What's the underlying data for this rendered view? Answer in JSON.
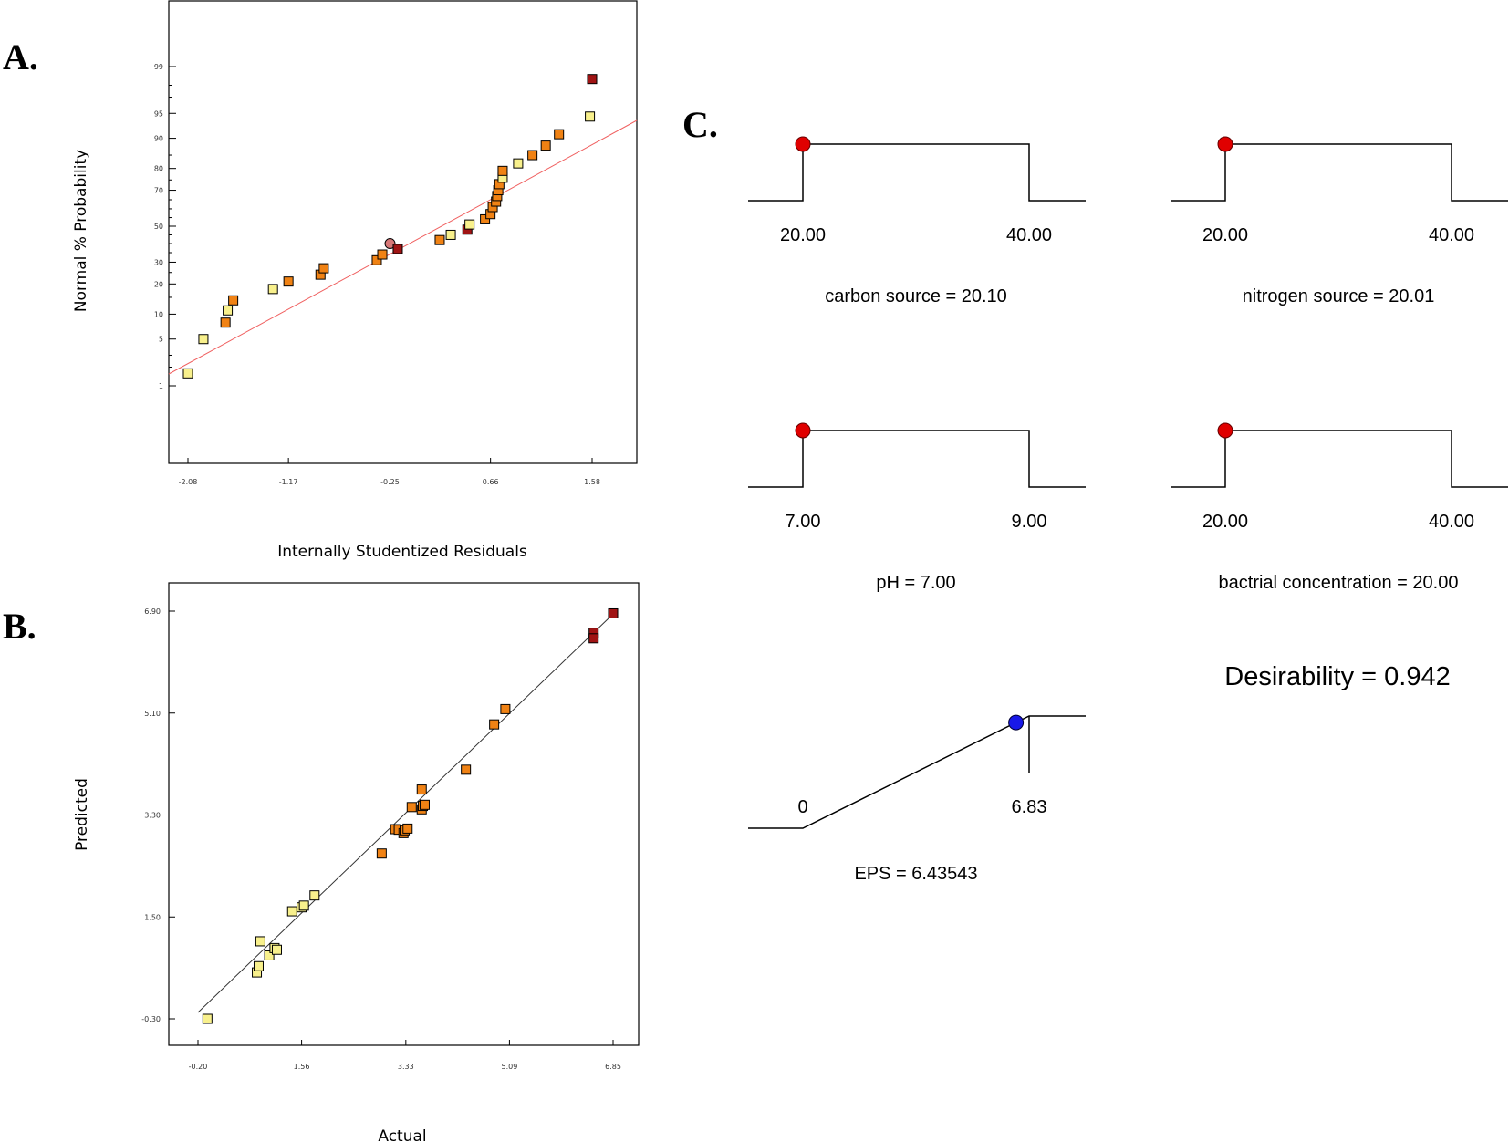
{
  "panel_labels": {
    "a": "A.",
    "b": "B.",
    "c": "C."
  },
  "colors": {
    "light": "#f8f08c",
    "orange": "#f08214",
    "dark": "#a01414",
    "pink": "#d87878",
    "line_a": "#f06060",
    "red_dot": "#e00000",
    "blue_dot": "#1818e8"
  },
  "chart_data": [
    {
      "type": "scatter",
      "xlabel": "Internally Studentized Residuals",
      "ylabel": "Normal % Probability",
      "xticks": [
        "-2.08",
        "-1.17",
        "-0.25",
        "0.66",
        "1.58"
      ],
      "xlim": [
        -2.3,
        1.8
      ],
      "yscale": "normal-probability",
      "yticks": [
        1,
        5,
        10,
        20,
        30,
        50,
        70,
        80,
        90,
        95,
        99
      ],
      "ylim": [
        0.1,
        99.9
      ],
      "fit_line": {
        "x": [
          -2.3,
          1.8
        ],
        "y": [
          2.5,
          94.5
        ]
      },
      "points": [
        {
          "x": -2.08,
          "y": 1.6,
          "c": "light"
        },
        {
          "x": -1.94,
          "y": 5,
          "c": "light"
        },
        {
          "x": -1.74,
          "y": 8,
          "c": "orange"
        },
        {
          "x": -1.72,
          "y": 11,
          "c": "light"
        },
        {
          "x": -1.67,
          "y": 14,
          "c": "orange"
        },
        {
          "x": -1.31,
          "y": 18,
          "c": "light"
        },
        {
          "x": -1.17,
          "y": 21,
          "c": "orange"
        },
        {
          "x": -0.88,
          "y": 24,
          "c": "orange"
        },
        {
          "x": -0.85,
          "y": 27,
          "c": "orange"
        },
        {
          "x": -0.37,
          "y": 31,
          "c": "orange"
        },
        {
          "x": -0.32,
          "y": 34,
          "c": "orange"
        },
        {
          "x": -0.25,
          "y": 40,
          "c": "pink"
        },
        {
          "x": -0.18,
          "y": 37,
          "c": "dark"
        },
        {
          "x": 0.2,
          "y": 42,
          "c": "orange"
        },
        {
          "x": 0.3,
          "y": 45,
          "c": "light"
        },
        {
          "x": 0.45,
          "y": 48,
          "c": "dark"
        },
        {
          "x": 0.47,
          "y": 51,
          "c": "light"
        },
        {
          "x": 0.61,
          "y": 54,
          "c": "orange"
        },
        {
          "x": 0.66,
          "y": 57,
          "c": "orange"
        },
        {
          "x": 0.68,
          "y": 61,
          "c": "orange"
        },
        {
          "x": 0.71,
          "y": 64,
          "c": "orange"
        },
        {
          "x": 0.72,
          "y": 67,
          "c": "orange"
        },
        {
          "x": 0.73,
          "y": 70,
          "c": "orange"
        },
        {
          "x": 0.74,
          "y": 73,
          "c": "orange"
        },
        {
          "x": 0.77,
          "y": 76,
          "c": "light"
        },
        {
          "x": 0.77,
          "y": 79,
          "c": "orange"
        },
        {
          "x": 0.91,
          "y": 82,
          "c": "light"
        },
        {
          "x": 1.04,
          "y": 85,
          "c": "orange"
        },
        {
          "x": 1.16,
          "y": 88,
          "c": "orange"
        },
        {
          "x": 1.28,
          "y": 91,
          "c": "orange"
        },
        {
          "x": 1.56,
          "y": 94.5,
          "c": "light"
        },
        {
          "x": 1.58,
          "y": 98.4,
          "c": "dark"
        }
      ]
    },
    {
      "type": "scatter",
      "xlabel": "Actual",
      "ylabel": "Predicted",
      "xticks": [
        "-0.20",
        "1.56",
        "3.33",
        "5.09",
        "6.85"
      ],
      "yticks": [
        "-0.30",
        "1.50",
        "3.30",
        "5.10",
        "6.90"
      ],
      "xlim": [
        -0.2,
        6.85
      ],
      "ylim": [
        -0.75,
        7.4
      ],
      "fit_line": {
        "x": [
          -0.2,
          6.85
        ],
        "y": [
          -0.2,
          6.85
        ]
      },
      "points": [
        {
          "x": -0.04,
          "y": -0.3,
          "c": "light"
        },
        {
          "x": 0.8,
          "y": 0.52,
          "c": "light"
        },
        {
          "x": 0.83,
          "y": 0.63,
          "c": "light"
        },
        {
          "x": 0.86,
          "y": 1.07,
          "c": "light"
        },
        {
          "x": 1.01,
          "y": 0.82,
          "c": "light"
        },
        {
          "x": 1.1,
          "y": 0.95,
          "c": "light"
        },
        {
          "x": 1.14,
          "y": 0.92,
          "c": "light"
        },
        {
          "x": 1.4,
          "y": 1.6,
          "c": "light"
        },
        {
          "x": 1.56,
          "y": 1.67,
          "c": "light"
        },
        {
          "x": 1.6,
          "y": 1.7,
          "c": "light"
        },
        {
          "x": 1.78,
          "y": 1.88,
          "c": "light"
        },
        {
          "x": 2.92,
          "y": 2.62,
          "c": "orange"
        },
        {
          "x": 3.15,
          "y": 3.05,
          "c": "orange"
        },
        {
          "x": 3.21,
          "y": 3.04,
          "c": "orange"
        },
        {
          "x": 3.29,
          "y": 2.98,
          "c": "orange"
        },
        {
          "x": 3.31,
          "y": 3.03,
          "c": "orange"
        },
        {
          "x": 3.36,
          "y": 3.06,
          "c": "orange"
        },
        {
          "x": 3.43,
          "y": 3.44,
          "c": "orange"
        },
        {
          "x": 3.6,
          "y": 3.4,
          "c": "orange"
        },
        {
          "x": 3.62,
          "y": 3.46,
          "c": "orange"
        },
        {
          "x": 3.65,
          "y": 3.48,
          "c": "orange"
        },
        {
          "x": 3.6,
          "y": 3.75,
          "c": "orange"
        },
        {
          "x": 4.35,
          "y": 4.1,
          "c": "orange"
        },
        {
          "x": 4.83,
          "y": 4.9,
          "c": "orange"
        },
        {
          "x": 5.02,
          "y": 5.17,
          "c": "orange"
        },
        {
          "x": 6.52,
          "y": 6.52,
          "c": "dark"
        },
        {
          "x": 6.52,
          "y": 6.42,
          "c": "dark"
        },
        {
          "x": 6.85,
          "y": 6.86,
          "c": "dark"
        }
      ]
    }
  ],
  "ramps": [
    {
      "low": "20.00",
      "high": "40.00",
      "caption": "carbon source  = 20.10",
      "marker": "red",
      "shape": "flat"
    },
    {
      "low": "20.00",
      "high": "40.00",
      "caption": "nitrogen source  = 20.01",
      "marker": "red",
      "shape": "flat"
    },
    {
      "low": "7.00",
      "high": "9.00",
      "caption": "pH = 7.00",
      "marker": "red",
      "shape": "flat"
    },
    {
      "low": "20.00",
      "high": "40.00",
      "caption": "bactrial concentration  = 20.00",
      "marker": "red",
      "shape": "flat"
    },
    {
      "low": "0",
      "high": "6.83",
      "caption": "EPS  = 6.43543",
      "marker": "blue",
      "shape": "ramp",
      "value_fraction": 0.942
    }
  ],
  "desirability": "Desirability = 0.942"
}
